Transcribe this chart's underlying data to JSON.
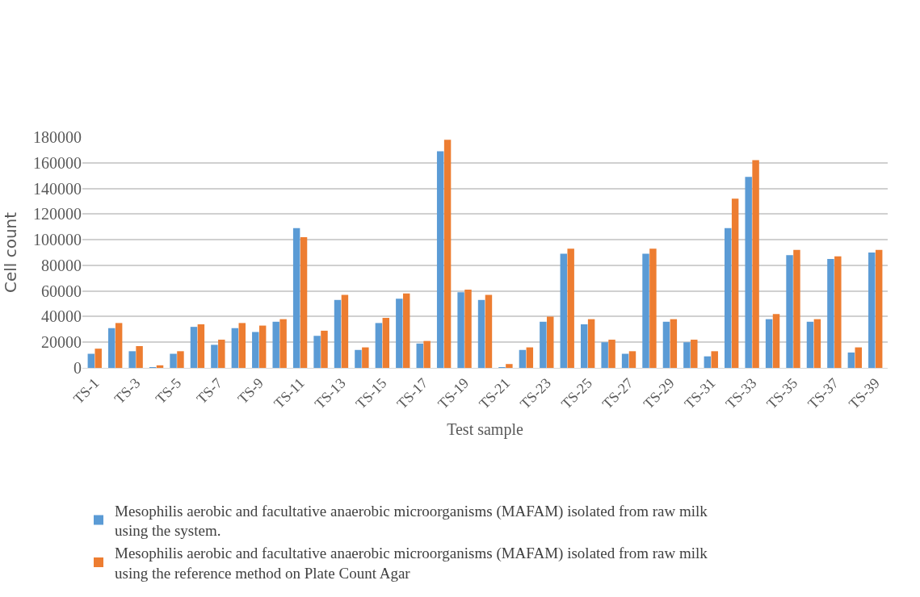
{
  "chart_data": {
    "type": "bar",
    "xlabel": "Test sample",
    "ylabel": "Cell count",
    "categories": [
      "TS-1",
      null,
      "TS-3",
      null,
      "TS-5",
      null,
      "TS-7",
      null,
      "TS-9",
      null,
      "TS-11",
      null,
      "TS-13",
      null,
      "TS-15",
      null,
      "TS-17",
      null,
      "TS-19",
      null,
      "TS-21",
      null,
      "TS-23",
      null,
      "TS-25",
      null,
      "TS-27",
      null,
      "TS-29",
      null,
      "TS-31",
      null,
      "TS-33",
      null,
      "TS-35",
      null,
      "TS-37",
      null,
      "TS-39"
    ],
    "series": [
      {
        "name": "Mesophilis aerobic and facultative anaerobic microorganisms (MAFAM) isolated from raw milk using the system.",
        "color": "#5b9bd5",
        "values": [
          11000,
          31000,
          13000,
          500,
          11000,
          32000,
          18000,
          31000,
          28000,
          36000,
          109000,
          25000,
          53000,
          14000,
          35000,
          54000,
          19000,
          169000,
          59000,
          53000,
          500,
          14000,
          36000,
          89000,
          34000,
          20000,
          11000,
          89000,
          36000,
          20000,
          9000,
          109000,
          149000,
          38000,
          88000,
          36000,
          85000,
          12000,
          90000
        ]
      },
      {
        "name": "Mesophilis aerobic and facultative anaerobic microorganisms (MAFAM) isolated from raw milk using the reference method on Plate Count Agar",
        "color": "#ed7d31",
        "values": [
          15000,
          35000,
          17000,
          2000,
          13000,
          34000,
          22000,
          35000,
          33000,
          38000,
          102000,
          29000,
          57000,
          16000,
          39000,
          58000,
          21000,
          178000,
          61000,
          57000,
          3000,
          16000,
          40000,
          93000,
          38000,
          22000,
          13000,
          93000,
          38000,
          22000,
          13000,
          132000,
          162000,
          42000,
          92000,
          38000,
          87000,
          16000,
          92000
        ]
      }
    ],
    "ylim": [
      0,
      180000
    ],
    "yticks": [
      0,
      20000,
      40000,
      60000,
      80000,
      100000,
      120000,
      140000,
      160000,
      180000
    ],
    "grid": "y",
    "legend": "bottom"
  }
}
